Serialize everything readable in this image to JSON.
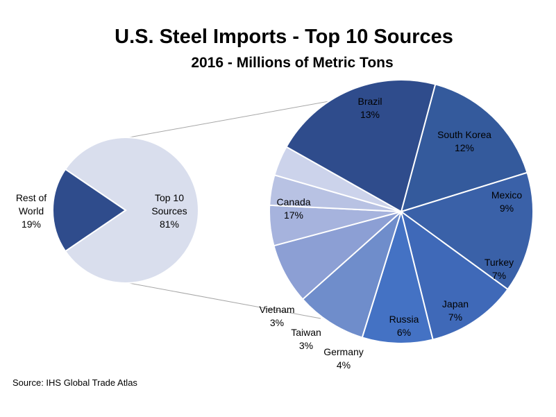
{
  "chart_data": {
    "type": "pie",
    "variant": "pie-of-pie",
    "title": "U.S. Steel Imports - Top 10 Sources",
    "subtitle": "2016 - Millions of Metric Tons",
    "source": "Source: IHS Global Trade Atlas",
    "primary_pie": [
      {
        "label_lines": [
          "Top 10",
          "Sources"
        ],
        "percent": "81%",
        "value": 81,
        "color": "#d9deed"
      },
      {
        "label_lines": [
          "Rest of",
          "World"
        ],
        "percent": "19%",
        "value": 19,
        "color": "#2f4c8c"
      }
    ],
    "secondary_pie": [
      {
        "label": "Brazil",
        "percent": "13%",
        "value": 13,
        "color": "#345a9c"
      },
      {
        "label": "South Korea",
        "percent": "12%",
        "value": 12,
        "color": "#3a61a8"
      },
      {
        "label": "Mexico",
        "percent": "9%",
        "value": 9,
        "color": "#3f69b8"
      },
      {
        "label": "Turkey",
        "percent": "7%",
        "value": 7,
        "color": "#4472c4"
      },
      {
        "label": "Japan",
        "percent": "7%",
        "value": 7,
        "color": "#6f8dcb"
      },
      {
        "label": "Russia",
        "percent": "6%",
        "value": 6,
        "color": "#8c9fd4"
      },
      {
        "label": "Germany",
        "percent": "4%",
        "value": 4,
        "color": "#a6b3dd"
      },
      {
        "label": "Taiwan",
        "percent": "3%",
        "value": 3,
        "color": "#b8c2e3"
      },
      {
        "label": "Vietnam",
        "percent": "3%",
        "value": 3,
        "color": "#ccd3eb"
      },
      {
        "label": "Canada",
        "percent": "17%",
        "value": 17,
        "color": "#2f4c8c"
      }
    ]
  }
}
